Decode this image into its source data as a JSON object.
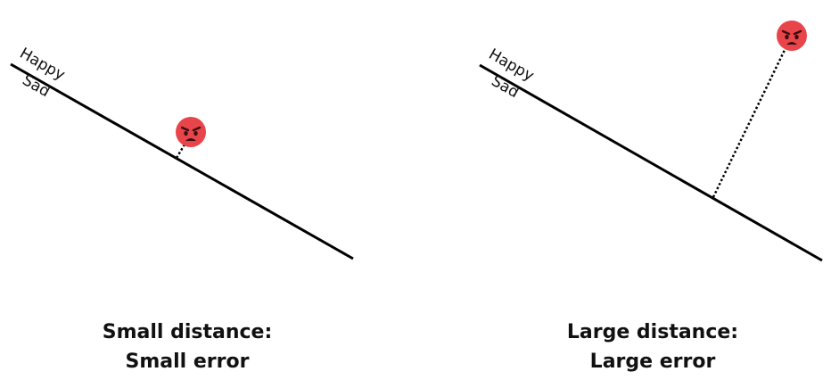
{
  "panels": [
    {
      "happy_label": "Happy",
      "sad_label": "Sad",
      "caption_line1": "Small distance:",
      "caption_line2": "Small error",
      "face_icon": "angry-face-icon"
    },
    {
      "happy_label": "Happy",
      "sad_label": "Sad",
      "caption_line1": "Large distance:",
      "caption_line2": "Large error",
      "face_icon": "angry-face-icon"
    }
  ],
  "colors": {
    "face_fill": "#e8454a",
    "face_features": "#3a0d0f",
    "line": "#000000"
  }
}
